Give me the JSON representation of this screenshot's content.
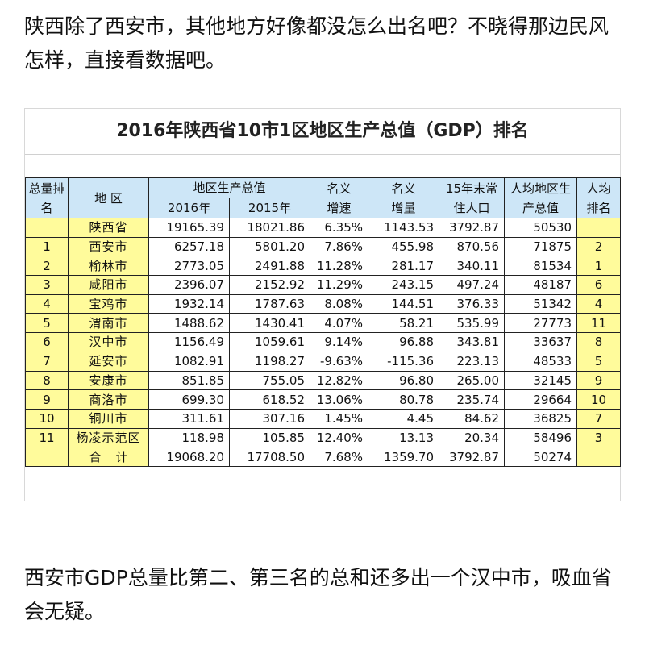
{
  "intro_text": "陕西除了西安市，其他地方好像都没怎么出名吧？不晓得那边民风怎样，直接看数据吧。",
  "outro_text": "西安市GDP总量比第二、第三名的总和还多出一个汉中市，吸血省会无疑。",
  "table_title": "2016年陕西省10市1区地区生产总值（GDP）排名",
  "headers": {
    "rank": "总量排名",
    "region": "地 区",
    "gdp_group": "地区生产总值",
    "y2016": "2016年",
    "y2015": "2015年",
    "growth": "名义增速",
    "increase": "名义增量",
    "population": "15年末常住人口",
    "per_capita": "人均地区生产总值",
    "pc_rank": "人均排名"
  },
  "rows": [
    {
      "rank": "",
      "region": "陕西省",
      "y2016": "19165.39",
      "y2015": "18021.86",
      "growth": "6.35%",
      "increase": "1143.53",
      "population": "3792.87",
      "per_capita": "50530",
      "pc_rank": ""
    },
    {
      "rank": "1",
      "region": "西安市",
      "y2016": "6257.18",
      "y2015": "5801.20",
      "growth": "7.86%",
      "increase": "455.98",
      "population": "870.56",
      "per_capita": "71875",
      "pc_rank": "2"
    },
    {
      "rank": "2",
      "region": "榆林市",
      "y2016": "2773.05",
      "y2015": "2491.88",
      "growth": "11.28%",
      "increase": "281.17",
      "population": "340.11",
      "per_capita": "81534",
      "pc_rank": "1"
    },
    {
      "rank": "3",
      "region": "咸阳市",
      "y2016": "2396.07",
      "y2015": "2152.92",
      "growth": "11.29%",
      "increase": "243.15",
      "population": "497.24",
      "per_capita": "48187",
      "pc_rank": "6"
    },
    {
      "rank": "4",
      "region": "宝鸡市",
      "y2016": "1932.14",
      "y2015": "1787.63",
      "growth": "8.08%",
      "increase": "144.51",
      "population": "376.33",
      "per_capita": "51342",
      "pc_rank": "4"
    },
    {
      "rank": "5",
      "region": "渭南市",
      "y2016": "1488.62",
      "y2015": "1430.41",
      "growth": "4.07%",
      "increase": "58.21",
      "population": "535.99",
      "per_capita": "27773",
      "pc_rank": "11"
    },
    {
      "rank": "6",
      "region": "汉中市",
      "y2016": "1156.49",
      "y2015": "1059.61",
      "growth": "9.14%",
      "increase": "96.88",
      "population": "343.81",
      "per_capita": "33637",
      "pc_rank": "8"
    },
    {
      "rank": "7",
      "region": "延安市",
      "y2016": "1082.91",
      "y2015": "1198.27",
      "growth": "-9.63%",
      "increase": "-115.36",
      "population": "223.13",
      "per_capita": "48533",
      "pc_rank": "5"
    },
    {
      "rank": "8",
      "region": "安康市",
      "y2016": "851.85",
      "y2015": "755.05",
      "growth": "12.82%",
      "increase": "96.80",
      "population": "265.00",
      "per_capita": "32145",
      "pc_rank": "9"
    },
    {
      "rank": "9",
      "region": "商洛市",
      "y2016": "699.30",
      "y2015": "618.52",
      "growth": "13.06%",
      "increase": "80.78",
      "population": "235.74",
      "per_capita": "29664",
      "pc_rank": "10"
    },
    {
      "rank": "10",
      "region": "铜川市",
      "y2016": "311.61",
      "y2015": "307.16",
      "growth": "1.45%",
      "increase": "4.45",
      "population": "84.62",
      "per_capita": "36825",
      "pc_rank": "7"
    },
    {
      "rank": "11",
      "region": "杨凌示范区",
      "y2016": "118.98",
      "y2015": "105.85",
      "growth": "12.40%",
      "increase": "13.13",
      "population": "20.34",
      "per_capita": "58496",
      "pc_rank": "3"
    },
    {
      "rank": "",
      "region": "合计",
      "y2016": "19068.20",
      "y2015": "17708.50",
      "growth": "7.68%",
      "increase": "1359.70",
      "population": "3792.87",
      "per_capita": "50274",
      "pc_rank": ""
    }
  ],
  "colors": {
    "header_bg": "#cde6f7",
    "highlight_bg": "#fffb9b"
  }
}
